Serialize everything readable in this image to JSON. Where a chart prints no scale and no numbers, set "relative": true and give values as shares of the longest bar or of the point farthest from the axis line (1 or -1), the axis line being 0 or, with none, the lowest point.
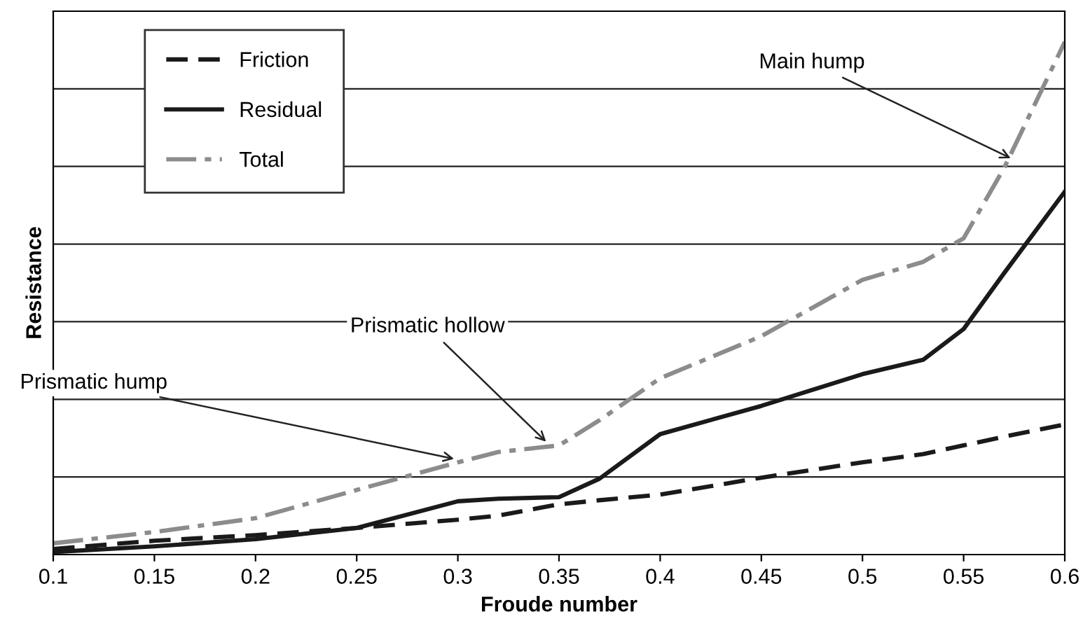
{
  "chart_data": {
    "type": "line",
    "relative": true,
    "xlabel": "Froude number",
    "ylabel": "Resistance",
    "x": [
      0.1,
      0.15,
      0.2,
      0.25,
      0.3,
      0.32,
      0.35,
      0.37,
      0.4,
      0.45,
      0.5,
      0.53,
      0.55,
      0.57,
      0.6
    ],
    "xlim": [
      0.1,
      0.6
    ],
    "xticks": [
      0.1,
      0.15,
      0.2,
      0.25,
      0.3,
      0.35,
      0.4,
      0.45,
      0.5,
      0.55,
      0.6
    ],
    "series": [
      {
        "name": "Friction",
        "color": "#1a1a1a",
        "line_style": "dashed",
        "values": [
          0.011,
          0.027,
          0.038,
          0.052,
          0.068,
          0.076,
          0.098,
          0.106,
          0.117,
          0.15,
          0.18,
          0.196,
          0.213,
          0.23,
          0.254
        ]
      },
      {
        "name": "Residual",
        "color": "#1a1a1a",
        "line_style": "solid",
        "values": [
          0.005,
          0.016,
          0.03,
          0.052,
          0.104,
          0.109,
          0.112,
          0.148,
          0.235,
          0.29,
          0.352,
          0.38,
          0.44,
          0.549,
          0.708
        ]
      },
      {
        "name": "Total",
        "color": "#8c8c8c",
        "line_style": "dashdot",
        "values": [
          0.022,
          0.044,
          0.071,
          0.126,
          0.18,
          0.2,
          0.213,
          0.262,
          0.344,
          0.426,
          0.536,
          0.571,
          0.617,
          0.754,
          1.0
        ]
      }
    ],
    "annotations": [
      {
        "text": "Main hump",
        "x": 0.575,
        "y": 0.77
      },
      {
        "text": "Prismatic hollow",
        "x": 0.345,
        "y": 0.215
      },
      {
        "text": "Prismatic hump",
        "x": 0.3,
        "y": 0.185
      }
    ],
    "grid": "y",
    "legend": "top left",
    "marker": "none"
  }
}
